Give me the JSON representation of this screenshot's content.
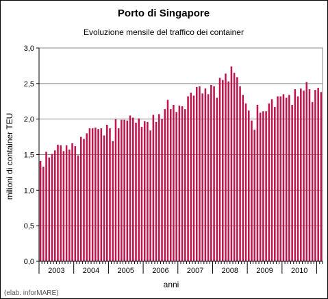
{
  "chart_data": {
    "type": "bar",
    "title": "Porto di Singapore",
    "subtitle": "Evoluzione mensile del traffico dei container",
    "xlabel": "anni",
    "ylabel": "milioni di container TEU",
    "ylim": [
      0,
      3
    ],
    "yticks": [
      "0,0",
      "0,5",
      "1,0",
      "1,5",
      "2,0",
      "2,5",
      "3,0"
    ],
    "year_labels": [
      "2003",
      "2004",
      "2005",
      "2006",
      "2007",
      "2008",
      "2009",
      "2010"
    ],
    "grid": true,
    "legend": "none",
    "bar_color": "#c0144c",
    "values": [
      1.41,
      1.33,
      1.54,
      1.46,
      1.51,
      1.56,
      1.64,
      1.63,
      1.55,
      1.63,
      1.57,
      1.66,
      1.62,
      1.49,
      1.75,
      1.72,
      1.8,
      1.87,
      1.87,
      1.88,
      1.86,
      1.87,
      1.77,
      1.92,
      1.87,
      1.69,
      2.0,
      1.87,
      1.99,
      1.99,
      1.98,
      2.05,
      2.02,
      1.95,
      2.01,
      1.89,
      1.97,
      1.96,
      1.84,
      2.06,
      1.96,
      2.07,
      2.0,
      2.14,
      2.27,
      2.14,
      2.2,
      2.1,
      2.19,
      2.18,
      2.14,
      2.32,
      2.37,
      2.33,
      2.45,
      2.46,
      2.36,
      2.43,
      2.35,
      2.48,
      2.46,
      2.3,
      2.58,
      2.55,
      2.64,
      2.53,
      2.74,
      2.65,
      2.59,
      2.46,
      2.34,
      2.22,
      2.12,
      1.98,
      1.85,
      2.2,
      2.09,
      2.11,
      2.11,
      2.22,
      2.28,
      2.17,
      2.32,
      2.32,
      2.35,
      2.3,
      2.34,
      2.2,
      2.42,
      2.32,
      2.43,
      2.4,
      2.52,
      2.42,
      2.24,
      2.41,
      2.44,
      2.38
    ]
  },
  "credit": "(elab. inforMARE)"
}
